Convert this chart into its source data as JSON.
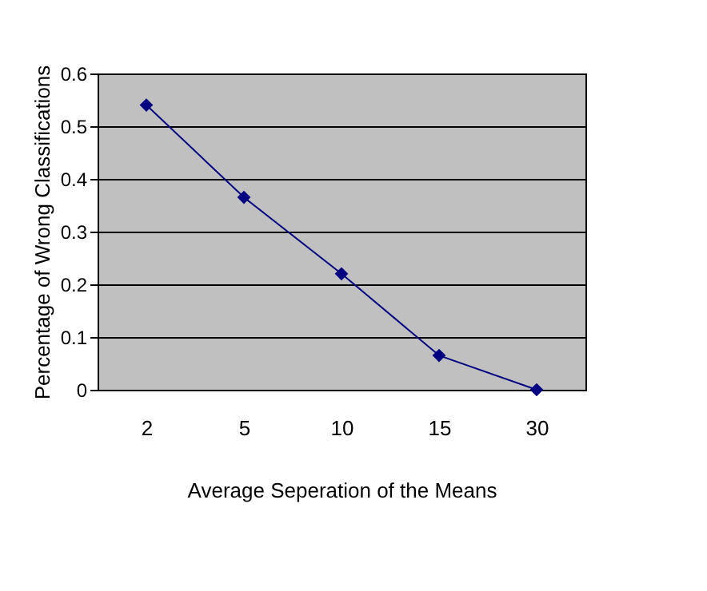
{
  "chart_data": {
    "type": "line",
    "xlabel": "Average Seperation of the Means",
    "ylabel": "Percentage of Wrong Classifications",
    "categories": [
      "2",
      "5",
      "10",
      "15",
      "30"
    ],
    "series": [
      {
        "color": "#000080",
        "values": [
          0.54,
          0.365,
          0.22,
          0.065,
          0.0
        ]
      }
    ],
    "ylim": [
      0,
      0.6
    ],
    "yticks": [
      0,
      0.1,
      0.2,
      0.3,
      0.4,
      0.5,
      0.6
    ],
    "grid": "y",
    "marker": "diamond",
    "line_style": "solid"
  }
}
